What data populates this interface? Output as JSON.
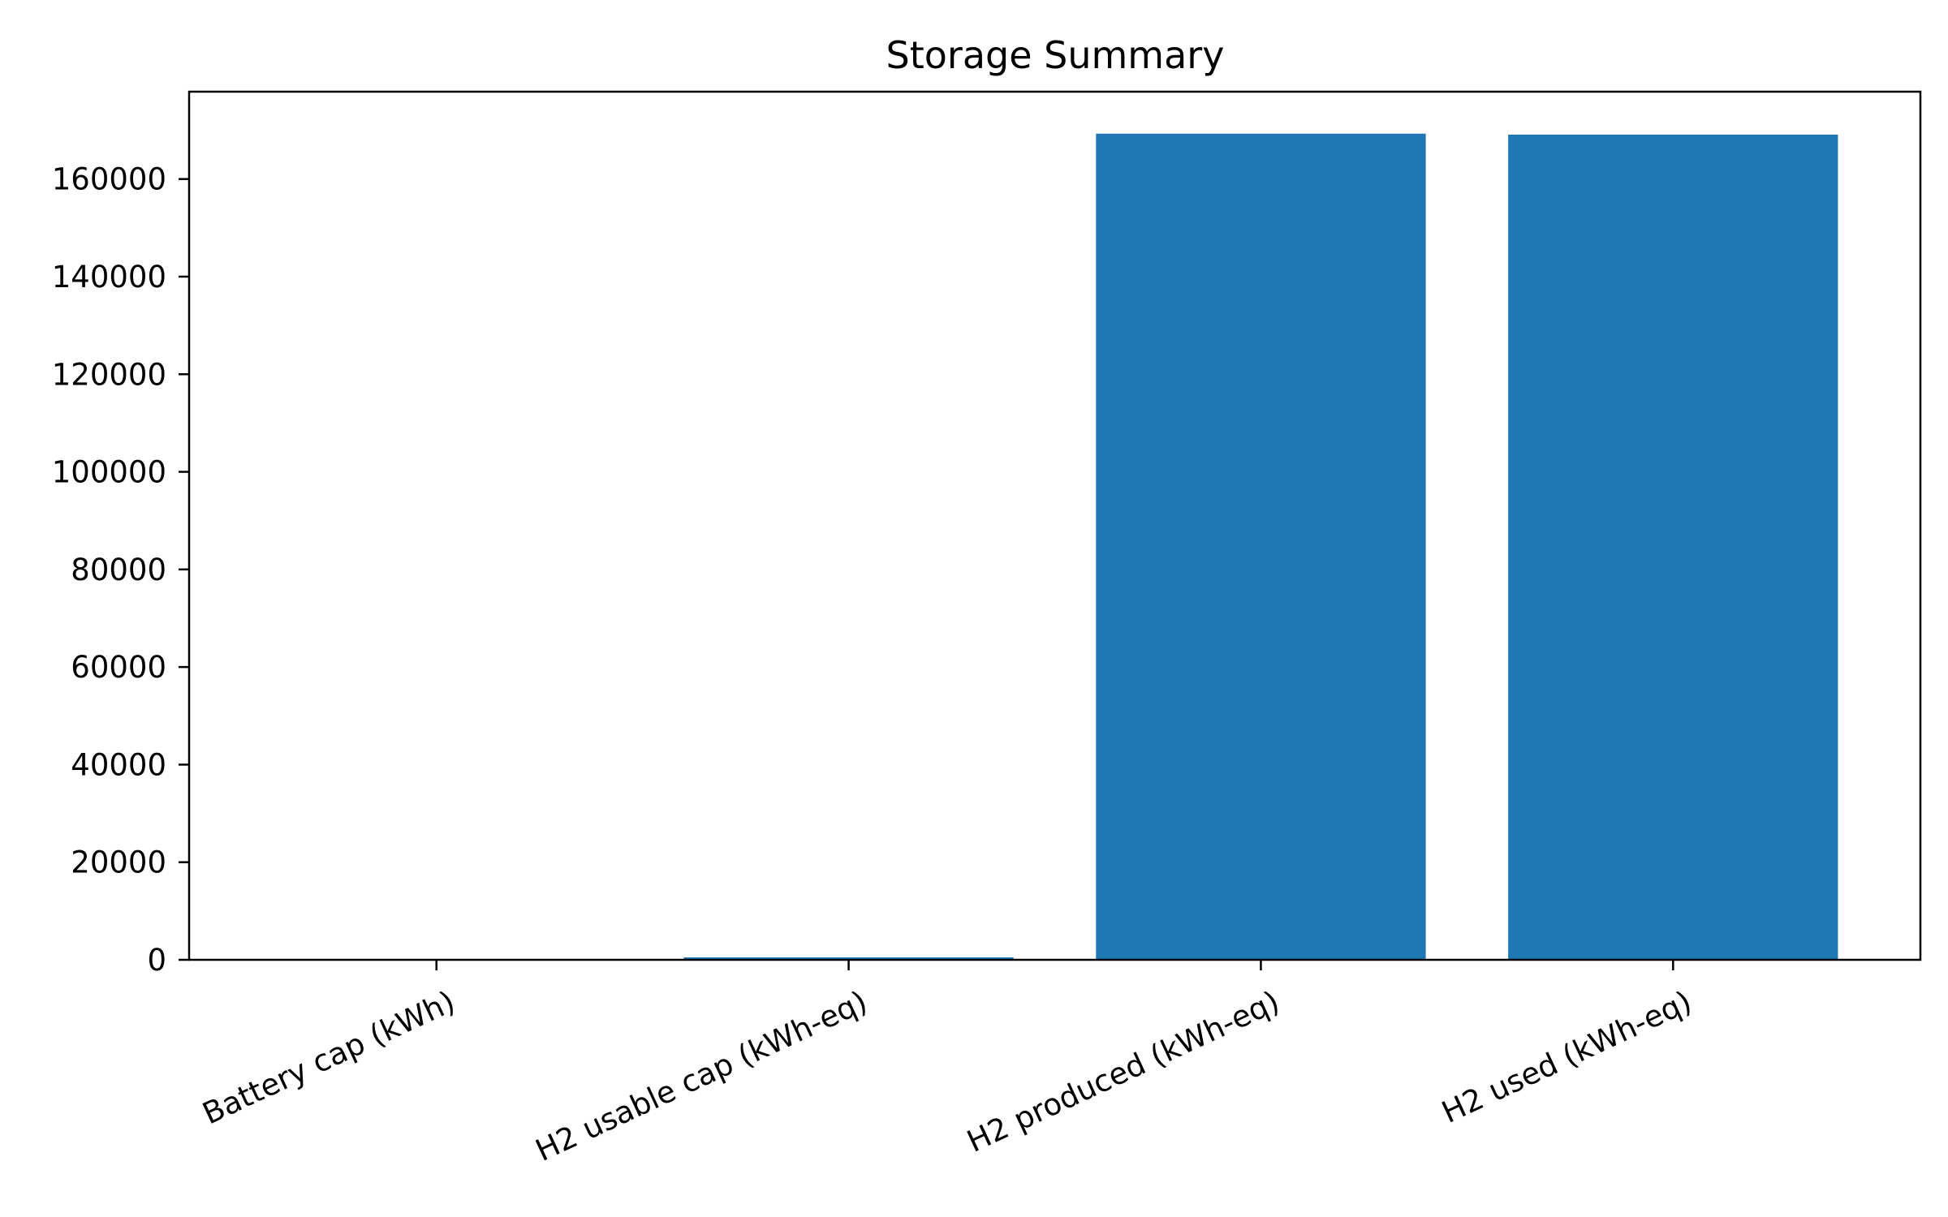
{
  "chart_data": {
    "type": "bar",
    "title": "Storage Summary",
    "xlabel": "",
    "ylabel": "",
    "categories": [
      "Battery cap (kWh)",
      "H2 usable cap (kWh-eq)",
      "H2 produced (kWh-eq)",
      "H2 used (kWh-eq)"
    ],
    "values": [
      0,
      500,
      169300,
      169100
    ],
    "ylim": [
      0,
      177900
    ],
    "yticks": [
      0,
      20000,
      40000,
      60000,
      80000,
      100000,
      120000,
      140000,
      160000
    ],
    "ytick_labels": [
      "0",
      "20000",
      "40000",
      "60000",
      "80000",
      "100000",
      "120000",
      "140000",
      "160000"
    ],
    "bar_color": "#1f77b4",
    "grid": false,
    "legend": "none"
  }
}
